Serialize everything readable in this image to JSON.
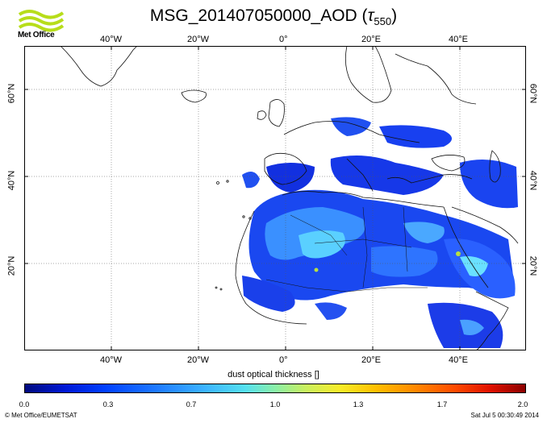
{
  "header": {
    "logo_text": "Met Office",
    "title_main": "MSG_201407050000_AOD (",
    "title_tau": "τ",
    "title_sub": "550",
    "title_close": ")"
  },
  "map": {
    "extent": {
      "lon": [
        -60,
        55
      ],
      "lat": [
        0,
        70
      ]
    },
    "grid_lons": [
      -40,
      -20,
      0,
      20,
      40
    ],
    "grid_lats": [
      20,
      40,
      60
    ],
    "lon_labels": [
      "40°W",
      "20°W",
      "0°",
      "20°E",
      "40°E"
    ],
    "lat_labels": [
      "20°N",
      "40°N",
      "60°N"
    ],
    "colors": {
      "low": "#0030e8",
      "mid": "#2f8cff",
      "high": "#55d8ff",
      "accent": "#b8e040",
      "coast": "#111111",
      "grid": "#555555"
    }
  },
  "colorbar": {
    "title": "dust optical thickness []",
    "range": [
      0.0,
      2.0
    ],
    "ticks": [
      "0.0",
      "0.3",
      "0.7",
      "1.0",
      "1.3",
      "1.7",
      "2.0"
    ]
  },
  "footer": {
    "credit": "© Met Office/EUMETSAT",
    "timestamp": "Sat Jul  5 00:30:49 2014"
  }
}
